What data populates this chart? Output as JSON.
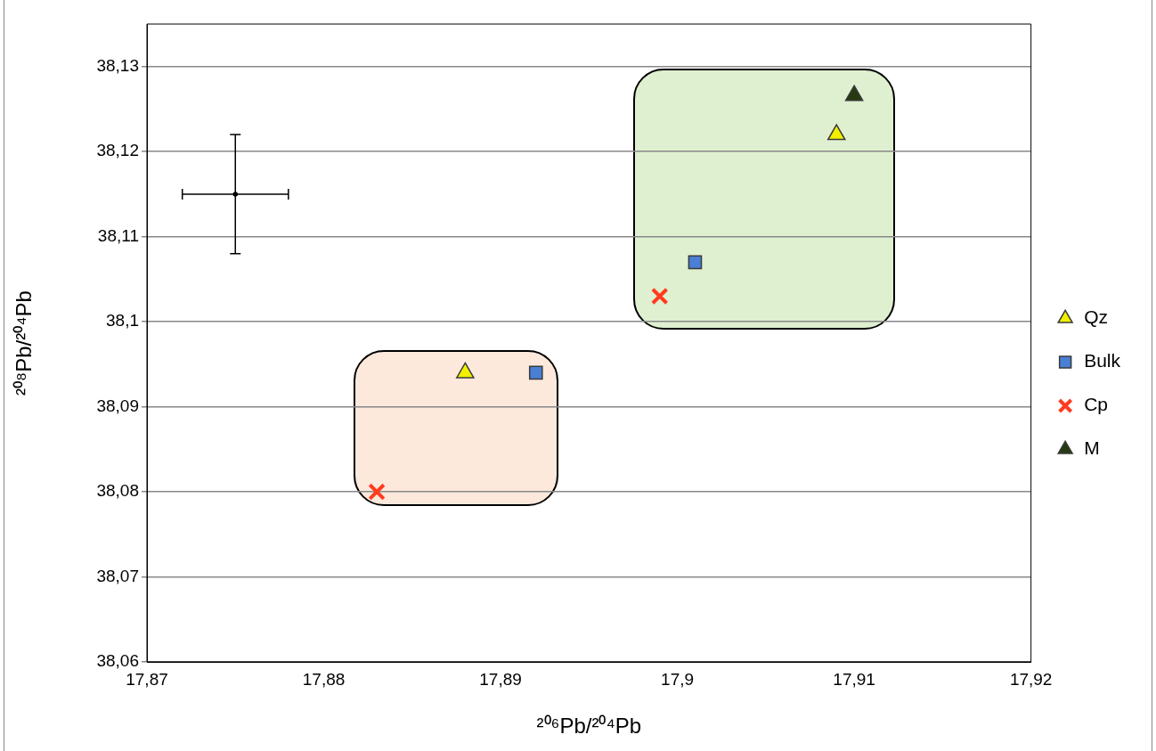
{
  "chart_data": {
    "type": "scatter",
    "xlabel": "²⁰⁶Pb/²⁰⁴Pb",
    "ylabel": "²⁰⁸Pb/²⁰⁴Pb",
    "xlim": [
      17.87,
      17.92
    ],
    "xticks": [
      {
        "value": 17.87,
        "label": "17,87"
      },
      {
        "value": 17.88,
        "label": "17,88"
      },
      {
        "value": 17.89,
        "label": "17,89"
      },
      {
        "value": 17.9,
        "label": "17,9"
      },
      {
        "value": 17.91,
        "label": "17,91"
      },
      {
        "value": 17.92,
        "label": "17,92"
      }
    ],
    "ylim": [
      38.06,
      38.135
    ],
    "yticks": [
      {
        "value": 38.06,
        "label": "38,06"
      },
      {
        "value": 38.07,
        "label": "38,07"
      },
      {
        "value": 38.08,
        "label": "38,08"
      },
      {
        "value": 38.09,
        "label": "38,09"
      },
      {
        "value": 38.1,
        "label": "38,1"
      },
      {
        "value": 38.11,
        "label": "38,11"
      },
      {
        "value": 38.12,
        "label": "38,12"
      },
      {
        "value": 38.13,
        "label": "38,13"
      }
    ],
    "grid": "y",
    "legend": "right",
    "series": [
      {
        "name": "Qz",
        "color": "#f0f000",
        "marker": "triangle",
        "x": [
          17.888,
          17.909
        ],
        "values": [
          38.094,
          38.122
        ]
      },
      {
        "name": "Bulk",
        "color": "#4a7fd6",
        "marker": "square",
        "x": [
          17.892,
          17.901
        ],
        "values": [
          38.094,
          38.107
        ]
      },
      {
        "name": "Cp",
        "color": "#ff3b1f",
        "marker": "cross",
        "x": [
          17.883,
          17.899
        ],
        "values": [
          38.08,
          38.103
        ]
      },
      {
        "name": "M",
        "color": "#263a12",
        "marker": "triangle",
        "x": [
          17.91
        ],
        "values": [
          38.1266
        ]
      },
      {
        "color": "#000000",
        "x": [
          17.875
        ],
        "values": [
          38.115
        ],
        "errors": [
          0.007
        ],
        "xerrors": [
          0.003
        ]
      }
    ]
  }
}
